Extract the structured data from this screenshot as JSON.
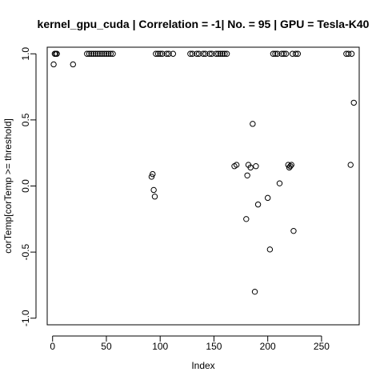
{
  "chart_data": {
    "type": "scatter",
    "title": "kernel_gpu_cuda | Correlation = -1| No. = 95 | GPU = Tesla-K40",
    "xlabel": "Index",
    "ylabel": "corTemp[corTemp >= threshold]",
    "xlim": [
      -5,
      285
    ],
    "ylim": [
      -1.05,
      1.05
    ],
    "xticks": [
      0,
      50,
      100,
      150,
      200,
      250
    ],
    "yticks": [
      -1.0,
      -0.5,
      0.0,
      0.5,
      1.0
    ],
    "xtick_labels": [
      "0",
      "50",
      "100",
      "150",
      "200",
      "250"
    ],
    "ytick_labels": [
      "-1.0",
      "-0.5",
      "0.0",
      "0.5",
      "1.0"
    ],
    "grid": false,
    "marker": "open-circle",
    "points": [
      {
        "x": 1,
        "y": 0.92
      },
      {
        "x": 2,
        "y": 1.0
      },
      {
        "x": 3,
        "y": 1.0
      },
      {
        "x": 4,
        "y": 1.0
      },
      {
        "x": 19,
        "y": 0.92
      },
      {
        "x": 32,
        "y": 1.0
      },
      {
        "x": 34,
        "y": 1.0
      },
      {
        "x": 36,
        "y": 1.0
      },
      {
        "x": 38,
        "y": 1.0
      },
      {
        "x": 40,
        "y": 1.0
      },
      {
        "x": 42,
        "y": 1.0
      },
      {
        "x": 44,
        "y": 1.0
      },
      {
        "x": 46,
        "y": 1.0
      },
      {
        "x": 48,
        "y": 1.0
      },
      {
        "x": 50,
        "y": 1.0
      },
      {
        "x": 52,
        "y": 1.0
      },
      {
        "x": 54,
        "y": 1.0
      },
      {
        "x": 56,
        "y": 1.0
      },
      {
        "x": 92,
        "y": 0.07
      },
      {
        "x": 93,
        "y": 0.09
      },
      {
        "x": 94,
        "y": -0.03
      },
      {
        "x": 95,
        "y": -0.08
      },
      {
        "x": 96,
        "y": 1.0
      },
      {
        "x": 98,
        "y": 1.0
      },
      {
        "x": 100,
        "y": 1.0
      },
      {
        "x": 102,
        "y": 1.0
      },
      {
        "x": 106,
        "y": 1.0
      },
      {
        "x": 108,
        "y": 1.0
      },
      {
        "x": 112,
        "y": 1.0
      },
      {
        "x": 128,
        "y": 1.0
      },
      {
        "x": 130,
        "y": 1.0
      },
      {
        "x": 134,
        "y": 1.0
      },
      {
        "x": 136,
        "y": 1.0
      },
      {
        "x": 140,
        "y": 1.0
      },
      {
        "x": 142,
        "y": 1.0
      },
      {
        "x": 146,
        "y": 1.0
      },
      {
        "x": 148,
        "y": 1.0
      },
      {
        "x": 152,
        "y": 1.0
      },
      {
        "x": 154,
        "y": 1.0
      },
      {
        "x": 156,
        "y": 1.0
      },
      {
        "x": 158,
        "y": 1.0
      },
      {
        "x": 160,
        "y": 1.0
      },
      {
        "x": 162,
        "y": 1.0
      },
      {
        "x": 169,
        "y": 0.15
      },
      {
        "x": 171,
        "y": 0.16
      },
      {
        "x": 180,
        "y": -0.25
      },
      {
        "x": 181,
        "y": 0.08
      },
      {
        "x": 182,
        "y": 0.16
      },
      {
        "x": 184,
        "y": 0.14
      },
      {
        "x": 186,
        "y": 0.47
      },
      {
        "x": 188,
        "y": -0.8
      },
      {
        "x": 189,
        "y": 0.15
      },
      {
        "x": 191,
        "y": -0.14
      },
      {
        "x": 200,
        "y": -0.09
      },
      {
        "x": 202,
        "y": -0.48
      },
      {
        "x": 205,
        "y": 1.0
      },
      {
        "x": 207,
        "y": 1.0
      },
      {
        "x": 209,
        "y": 1.0
      },
      {
        "x": 211,
        "y": 0.02
      },
      {
        "x": 213,
        "y": 1.0
      },
      {
        "x": 215,
        "y": 1.0
      },
      {
        "x": 217,
        "y": 1.0
      },
      {
        "x": 219,
        "y": 0.16
      },
      {
        "x": 220,
        "y": 0.14
      },
      {
        "x": 221,
        "y": 0.15
      },
      {
        "x": 222,
        "y": 0.16
      },
      {
        "x": 223,
        "y": 1.0
      },
      {
        "x": 224,
        "y": -0.34
      },
      {
        "x": 226,
        "y": 1.0
      },
      {
        "x": 228,
        "y": 1.0
      },
      {
        "x": 273,
        "y": 1.0
      },
      {
        "x": 275,
        "y": 1.0
      },
      {
        "x": 277,
        "y": 0.16
      },
      {
        "x": 278,
        "y": 1.0
      },
      {
        "x": 280,
        "y": 0.63
      }
    ]
  }
}
